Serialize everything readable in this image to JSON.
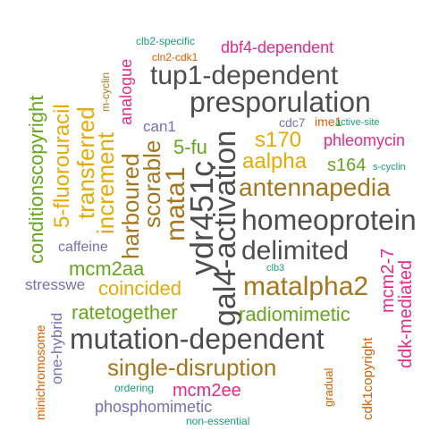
{
  "palette": {
    "gray": "#4d4d4d",
    "brown": "#a6761d",
    "gold": "#e6ab02",
    "green": "#66a61e",
    "magenta": "#e7298a",
    "purple": "#7570b3",
    "orange": "#d95f02",
    "teal": "#1b9e77"
  },
  "words": [
    {
      "text": "clb2-specific",
      "color": "teal"
    },
    {
      "text": "dbf4-dependent",
      "color": "magenta"
    },
    {
      "text": "cln2-cdk1",
      "color": "orange"
    },
    {
      "text": "analogue",
      "color": "magenta"
    },
    {
      "text": "m-cyclin",
      "color": "brown"
    },
    {
      "text": "tup1-dependent",
      "color": "gray"
    },
    {
      "text": "conditionscopyright",
      "color": "green"
    },
    {
      "text": "5-fluorouracil",
      "color": "gold"
    },
    {
      "text": "transferred",
      "color": "gold"
    },
    {
      "text": "increment",
      "color": "gold"
    },
    {
      "text": "presporulation",
      "color": "gray"
    },
    {
      "text": "can1",
      "color": "purple"
    },
    {
      "text": "cdc7",
      "color": "purple"
    },
    {
      "text": "ime1",
      "color": "orange"
    },
    {
      "text": "active-site",
      "color": "teal"
    },
    {
      "text": "harboured",
      "color": "brown"
    },
    {
      "text": "scorable",
      "color": "brown"
    },
    {
      "text": "5-fu",
      "color": "green"
    },
    {
      "text": "mata1",
      "color": "brown"
    },
    {
      "text": "ydr451c",
      "color": "gray"
    },
    {
      "text": "gal4-activation",
      "color": "gray"
    },
    {
      "text": "s170",
      "color": "gold"
    },
    {
      "text": "phleomycin",
      "color": "magenta"
    },
    {
      "text": "aalpha",
      "color": "gold"
    },
    {
      "text": "s164",
      "color": "green"
    },
    {
      "text": "s-cyclin",
      "color": "teal"
    },
    {
      "text": "antennapedia",
      "color": "brown"
    },
    {
      "text": "homeoprotein",
      "color": "gray"
    },
    {
      "text": "caffeine",
      "color": "purple"
    },
    {
      "text": "delimited",
      "color": "gray"
    },
    {
      "text": "mcm2aa",
      "color": "green"
    },
    {
      "text": "clb3",
      "color": "teal"
    },
    {
      "text": "mcm2-7",
      "color": "magenta"
    },
    {
      "text": "stresswe",
      "color": "purple"
    },
    {
      "text": "coincided",
      "color": "gold"
    },
    {
      "text": "matalpha2",
      "color": "brown"
    },
    {
      "text": "ddk-mediated",
      "color": "magenta"
    },
    {
      "text": "ratetogether",
      "color": "green"
    },
    {
      "text": "radiomimetic",
      "color": "green"
    },
    {
      "text": "minichromosome",
      "color": "orange"
    },
    {
      "text": "one-hybrid",
      "color": "purple"
    },
    {
      "text": "mutation-dependent",
      "color": "gray"
    },
    {
      "text": "single-disruption",
      "color": "brown"
    },
    {
      "text": "gradual",
      "color": "orange"
    },
    {
      "text": "cdk1copyright",
      "color": "orange"
    },
    {
      "text": "ordering",
      "color": "teal"
    },
    {
      "text": "mcm2ee",
      "color": "magenta"
    },
    {
      "text": "phosphomimetic",
      "color": "purple"
    },
    {
      "text": "non-essential",
      "color": "teal"
    }
  ]
}
